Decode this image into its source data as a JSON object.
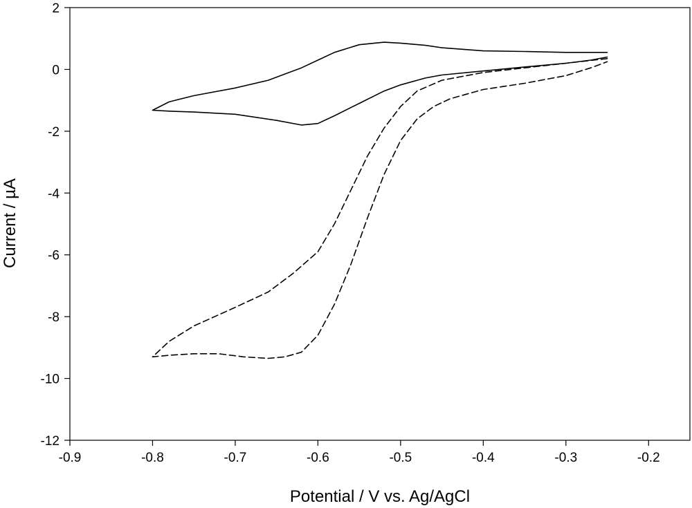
{
  "chart_data": {
    "type": "line",
    "title": "",
    "xlabel": "Potential / V vs. Ag/AgCl",
    "ylabel": "Current / µA",
    "xlim": [
      -0.9,
      -0.15
    ],
    "ylim": [
      -12,
      2
    ],
    "xticks": [
      -0.9,
      -0.8,
      -0.7,
      -0.6,
      -0.5,
      -0.4,
      -0.3,
      -0.2
    ],
    "xtick_labels": [
      "-0.9",
      "-0.8",
      "-0.7",
      "-0.6",
      "-0.5",
      "-0.4",
      "-0.3",
      "-0.2"
    ],
    "yticks": [
      -12,
      -10,
      -8,
      -6,
      -4,
      -2,
      0,
      2
    ],
    "ytick_labels": [
      "-12",
      "-10",
      "-8",
      "-6",
      "-4",
      "-2",
      "0",
      "2"
    ],
    "grid": false,
    "legend": "none",
    "series": [
      {
        "style": "solid",
        "color": "#000000",
        "points": [
          [
            -0.25,
            0.55
          ],
          [
            -0.27,
            0.55
          ],
          [
            -0.3,
            0.55
          ],
          [
            -0.35,
            0.58
          ],
          [
            -0.4,
            0.6
          ],
          [
            -0.45,
            0.7
          ],
          [
            -0.47,
            0.78
          ],
          [
            -0.5,
            0.85
          ],
          [
            -0.52,
            0.88
          ],
          [
            -0.55,
            0.8
          ],
          [
            -0.58,
            0.55
          ],
          [
            -0.6,
            0.3
          ],
          [
            -0.62,
            0.05
          ],
          [
            -0.64,
            -0.15
          ],
          [
            -0.66,
            -0.35
          ],
          [
            -0.7,
            -0.6
          ],
          [
            -0.75,
            -0.85
          ],
          [
            -0.78,
            -1.05
          ],
          [
            -0.8,
            -1.32
          ],
          [
            -0.78,
            -1.35
          ],
          [
            -0.75,
            -1.38
          ],
          [
            -0.7,
            -1.45
          ],
          [
            -0.65,
            -1.65
          ],
          [
            -0.62,
            -1.8
          ],
          [
            -0.6,
            -1.75
          ],
          [
            -0.58,
            -1.5
          ],
          [
            -0.55,
            -1.1
          ],
          [
            -0.52,
            -0.7
          ],
          [
            -0.5,
            -0.5
          ],
          [
            -0.47,
            -0.28
          ],
          [
            -0.45,
            -0.18
          ],
          [
            -0.4,
            -0.05
          ],
          [
            -0.35,
            0.08
          ],
          [
            -0.3,
            0.2
          ],
          [
            -0.27,
            0.3
          ],
          [
            -0.25,
            0.4
          ]
        ]
      },
      {
        "style": "dashed",
        "color": "#000000",
        "points": [
          [
            -0.25,
            0.35
          ],
          [
            -0.3,
            0.2
          ],
          [
            -0.35,
            0.05
          ],
          [
            -0.4,
            -0.1
          ],
          [
            -0.45,
            -0.35
          ],
          [
            -0.48,
            -0.7
          ],
          [
            -0.5,
            -1.2
          ],
          [
            -0.52,
            -1.9
          ],
          [
            -0.54,
            -2.8
          ],
          [
            -0.56,
            -3.9
          ],
          [
            -0.58,
            -5.0
          ],
          [
            -0.6,
            -5.9
          ],
          [
            -0.63,
            -6.6
          ],
          [
            -0.66,
            -7.2
          ],
          [
            -0.7,
            -7.7
          ],
          [
            -0.75,
            -8.3
          ],
          [
            -0.78,
            -8.8
          ],
          [
            -0.8,
            -9.3
          ],
          [
            -0.78,
            -9.25
          ],
          [
            -0.75,
            -9.2
          ],
          [
            -0.72,
            -9.2
          ],
          [
            -0.69,
            -9.3
          ],
          [
            -0.66,
            -9.35
          ],
          [
            -0.64,
            -9.3
          ],
          [
            -0.62,
            -9.15
          ],
          [
            -0.6,
            -8.6
          ],
          [
            -0.58,
            -7.6
          ],
          [
            -0.56,
            -6.3
          ],
          [
            -0.54,
            -4.8
          ],
          [
            -0.52,
            -3.4
          ],
          [
            -0.5,
            -2.3
          ],
          [
            -0.48,
            -1.6
          ],
          [
            -0.46,
            -1.2
          ],
          [
            -0.44,
            -0.95
          ],
          [
            -0.42,
            -0.8
          ],
          [
            -0.4,
            -0.65
          ],
          [
            -0.35,
            -0.45
          ],
          [
            -0.3,
            -0.2
          ],
          [
            -0.27,
            0.05
          ],
          [
            -0.25,
            0.25
          ]
        ]
      }
    ]
  }
}
